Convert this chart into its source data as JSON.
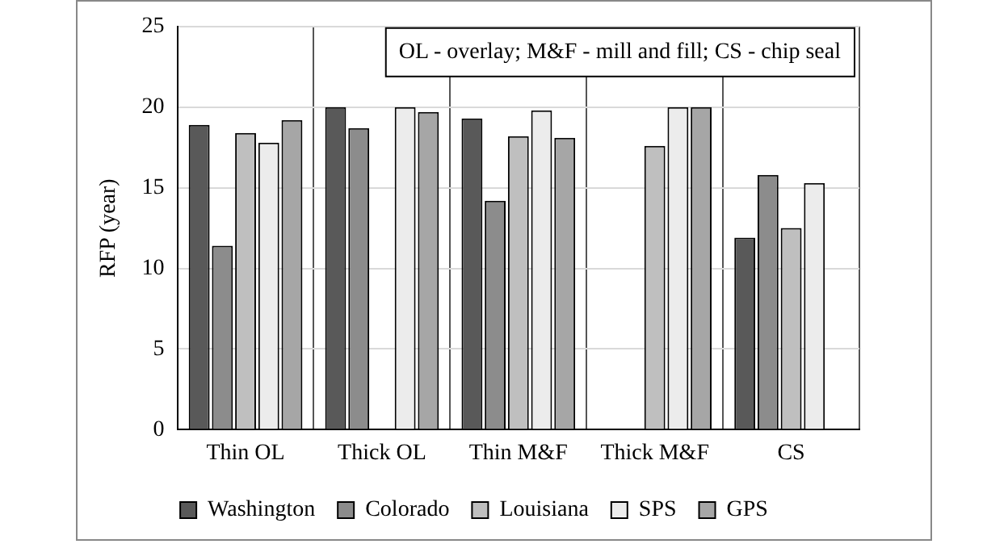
{
  "chart_data": {
    "type": "bar",
    "ylabel": "RFP (year)",
    "categories": [
      "Thin OL",
      "Thick OL",
      "Thin M&F",
      "Thick M&F",
      "CS"
    ],
    "series": [
      {
        "name": "Washington",
        "color": "#595959",
        "values": [
          18.9,
          20,
          19.3,
          null,
          11.9
        ]
      },
      {
        "name": "Colorado",
        "color": "#8c8c8c",
        "values": [
          11.4,
          18.7,
          14.2,
          null,
          15.8
        ]
      },
      {
        "name": "Louisiana",
        "color": "#bfbfbf",
        "values": [
          18.4,
          null,
          18.2,
          17.6,
          12.5
        ]
      },
      {
        "name": "SPS",
        "color": "#ececec",
        "values": [
          17.8,
          20,
          19.8,
          20,
          15.3
        ]
      },
      {
        "name": "GPS",
        "color": "#a6a6a6",
        "values": [
          19.2,
          19.7,
          18.1,
          20,
          null
        ]
      }
    ],
    "ylim": [
      0,
      25
    ],
    "yticks": [
      0,
      5,
      10,
      15,
      20,
      25
    ],
    "grid": true,
    "legend": "bottom",
    "annotations": [
      "OL - overlay; M&F - mill and fill; CS - chip seal"
    ]
  }
}
